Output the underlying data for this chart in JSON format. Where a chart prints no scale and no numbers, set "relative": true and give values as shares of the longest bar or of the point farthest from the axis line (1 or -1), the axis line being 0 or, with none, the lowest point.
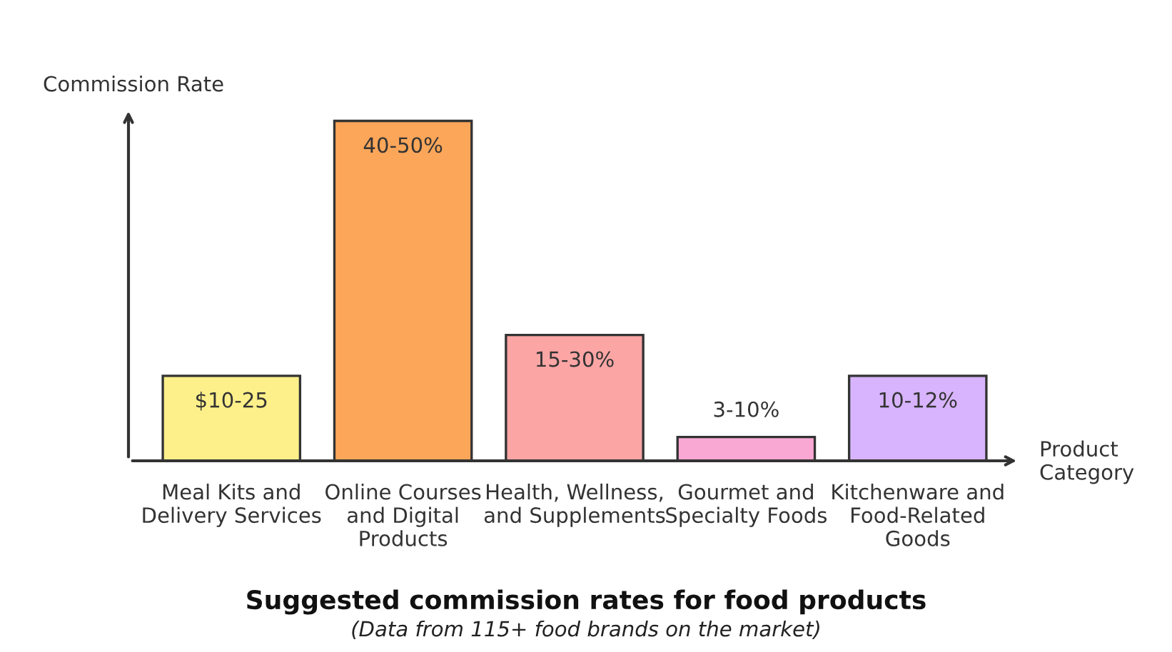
{
  "chart_data": {
    "type": "bar",
    "relative": true,
    "title": "Suggested commission rates for food products",
    "subtitle": "(Data from 115+ food brands on the market)",
    "xlabel": "Product\nCategory",
    "ylabel": "Commission Rate",
    "categories": [
      "Meal Kits and\nDelivery Services",
      "Online Courses\nand Digital\nProducts",
      "Health, Wellness,\nand Supplements",
      "Gourmet and\nSpecialty Foods",
      "Kitchenware and\nFood-Related\nGoods"
    ],
    "values": [
      0.25,
      1,
      0.37,
      0.07,
      0.25
    ],
    "annotations": [
      {
        "text": "$10-25",
        "x": "Meal Kits and\nDelivery Services",
        "y": 0.25
      },
      {
        "text": "40-50%",
        "x": "Online Courses\nand Digital\nProducts",
        "y": 1
      },
      {
        "text": "15-30%",
        "x": "Health, Wellness,\nand Supplements",
        "y": 0.37
      },
      {
        "text": "3-10%",
        "x": "Gourmet and\nSpecialty Foods",
        "y": 0.07
      },
      {
        "text": "10-12%",
        "x": "Kitchenware and\nFood-Related\nGoods",
        "y": 0.25
      }
    ],
    "colors": [
      "#fdf08a",
      "#fca65a",
      "#fca5a5",
      "#f9a8d4",
      "#d8b4fe"
    ],
    "grid": false,
    "legend": false
  }
}
